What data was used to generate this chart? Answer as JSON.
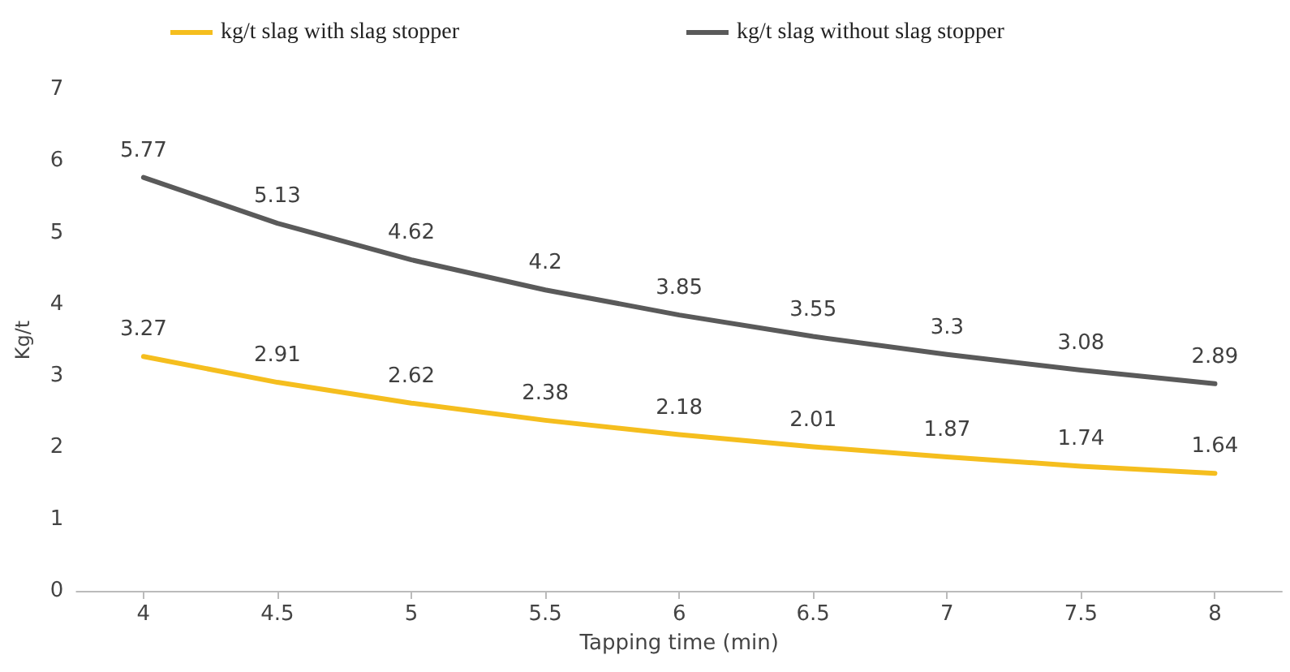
{
  "chart_data": {
    "type": "line",
    "xlabel": "Tapping time (min)",
    "ylabel": "Kg/t",
    "categories": [
      "4",
      "4.5",
      "5",
      "5.5",
      "6",
      "6.5",
      "7",
      "7.5",
      "8"
    ],
    "series": [
      {
        "name": "kg/t slag with slag stopper",
        "color": "#f5be1e",
        "values": [
          3.27,
          2.91,
          2.62,
          2.38,
          2.18,
          2.01,
          1.87,
          1.74,
          1.64
        ]
      },
      {
        "name": "kg/t slag without slag stopper",
        "color": "#5a5a5a",
        "values": [
          5.77,
          5.13,
          4.62,
          4.2,
          3.85,
          3.55,
          3.3,
          3.08,
          2.89
        ]
      }
    ],
    "ylim": [
      0,
      7
    ],
    "yticks": [
      0,
      1,
      2,
      3,
      4,
      5,
      6,
      7
    ],
    "grid": false,
    "legend": "top",
    "marker": "none",
    "line_style": "solid",
    "data_labels": true
  }
}
